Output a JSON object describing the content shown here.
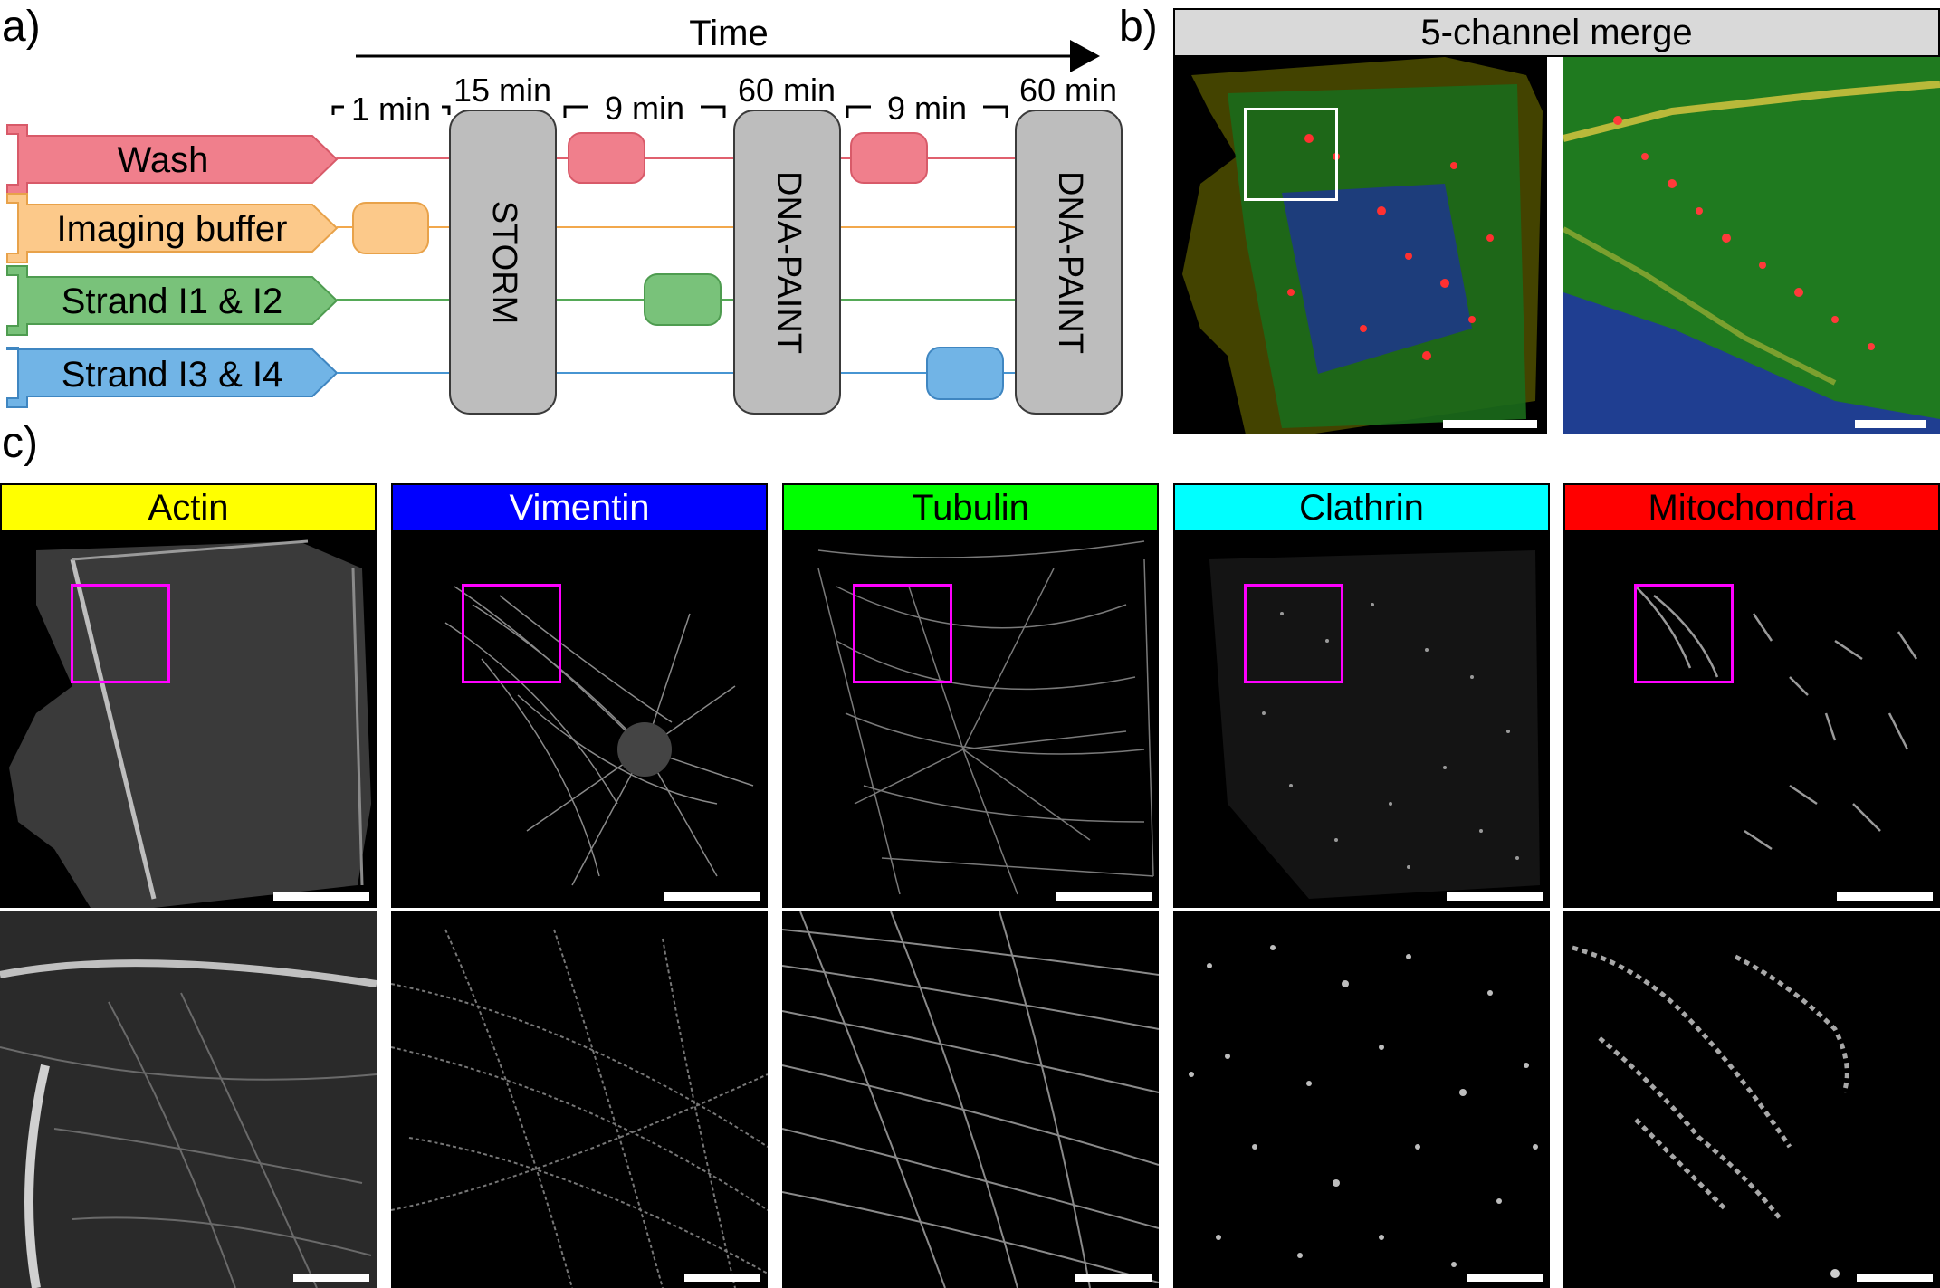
{
  "panel_labels": {
    "a": "a)",
    "b": "b)",
    "c": "c)"
  },
  "timeline": {
    "axis_label": "Time",
    "lanes": [
      {
        "label": "Wash",
        "color": "#f07f8c",
        "line": "#e0606e"
      },
      {
        "label": "Imaging buffer",
        "color": "#fcc98a",
        "line": "#f2a84c"
      },
      {
        "label": "Strand I1 & I2",
        "color": "#79c27a",
        "line": "#55a957"
      },
      {
        "label": "Strand I3 & I4",
        "color": "#71b4e6",
        "line": "#4795d2"
      }
    ],
    "durations": {
      "d1": "1 min",
      "d2": "15 min",
      "d3": "9 min",
      "d4": "60 min",
      "d5": "9 min",
      "d6": "60 min"
    },
    "blocks": {
      "storm": "STORM",
      "paint1": "DNA-PAINT",
      "paint2": "DNA-PAINT"
    }
  },
  "merge": {
    "title": "5-channel merge"
  },
  "channels": [
    {
      "label": "Actin",
      "bg": "#ffff00",
      "fg": "#000000"
    },
    {
      "label": "Vimentin",
      "bg": "#0000ff",
      "fg": "#ffffff"
    },
    {
      "label": "Tubulin",
      "bg": "#00ff00",
      "fg": "#000000"
    },
    {
      "label": "Clathrin",
      "bg": "#00ffff",
      "fg": "#000000"
    },
    {
      "label": "Mitochondria",
      "bg": "#ff0000",
      "fg": "#000000"
    }
  ],
  "colors": {
    "roi_box": "#ff00ff",
    "merge_roi": "#ffffff"
  }
}
